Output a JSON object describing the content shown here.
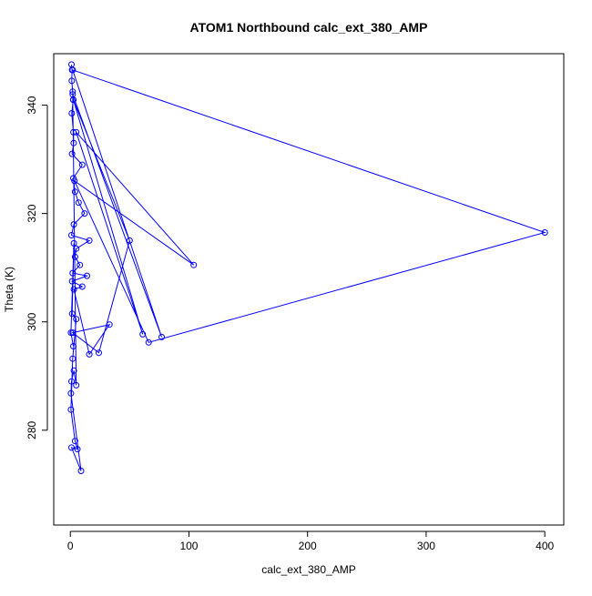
{
  "chart_data": {
    "type": "line",
    "title": "ATOM1 Northbound calc_ext_380_AMP",
    "xlabel": "calc_ext_380_AMP",
    "ylabel": "Theta (K)",
    "xlim": [
      -14,
      416
    ],
    "ylim": [
      262.5,
      349.5
    ],
    "x_ticks": [
      0,
      100,
      200,
      300,
      400
    ],
    "y_ticks": [
      280,
      300,
      320,
      340
    ],
    "grid": false,
    "legend": "none",
    "series_color": "#0000FF",
    "marker": "open-circle",
    "series": [
      {
        "x": [
          1.0,
          1.4,
          1.2,
          2.0,
          2.4,
          1.2,
          2.6,
          2.8,
          1.4,
          10.0,
          2.5,
          4.0,
          7.0,
          12.0,
          3.0,
          1.0,
          16.0,
          5.0,
          4.0,
          8.0,
          2.0,
          14.0,
          1.5,
          10.0,
          3.0,
          16.0,
          33.0,
          2.0,
          24.0,
          50.0,
          2.5,
          61.0,
          5.0,
          104.0,
          3.5,
          66.0,
          400.0,
          2.0,
          77.0,
          2.0,
          5.0,
          3.0,
          1.0,
          0.5,
          9.0,
          1.0,
          6.0,
          4.0,
          0.5,
          2.0,
          5.0,
          1.5,
          3.0,
          0.5,
          2.5
        ],
        "y": [
          347.5,
          346.5,
          344.5,
          342.5,
          341.0,
          338.5,
          335.0,
          333.0,
          331.0,
          329.0,
          326.5,
          324.0,
          322.0,
          320.0,
          318.0,
          316.0,
          315.0,
          313.5,
          312.0,
          310.5,
          309.0,
          308.5,
          307.5,
          306.5,
          306.0,
          294.0,
          299.5,
          298.0,
          294.3,
          315.0,
          341.0,
          297.7,
          335.0,
          310.5,
          326.0,
          296.2,
          316.5,
          346.5,
          297.2,
          342.0,
          288.3,
          291.0,
          289.0,
          286.8,
          272.5,
          276.8,
          276.5,
          278.0,
          283.8,
          293.2,
          300.5,
          301.5,
          314.5,
          298.0,
          295.5
        ]
      }
    ]
  }
}
